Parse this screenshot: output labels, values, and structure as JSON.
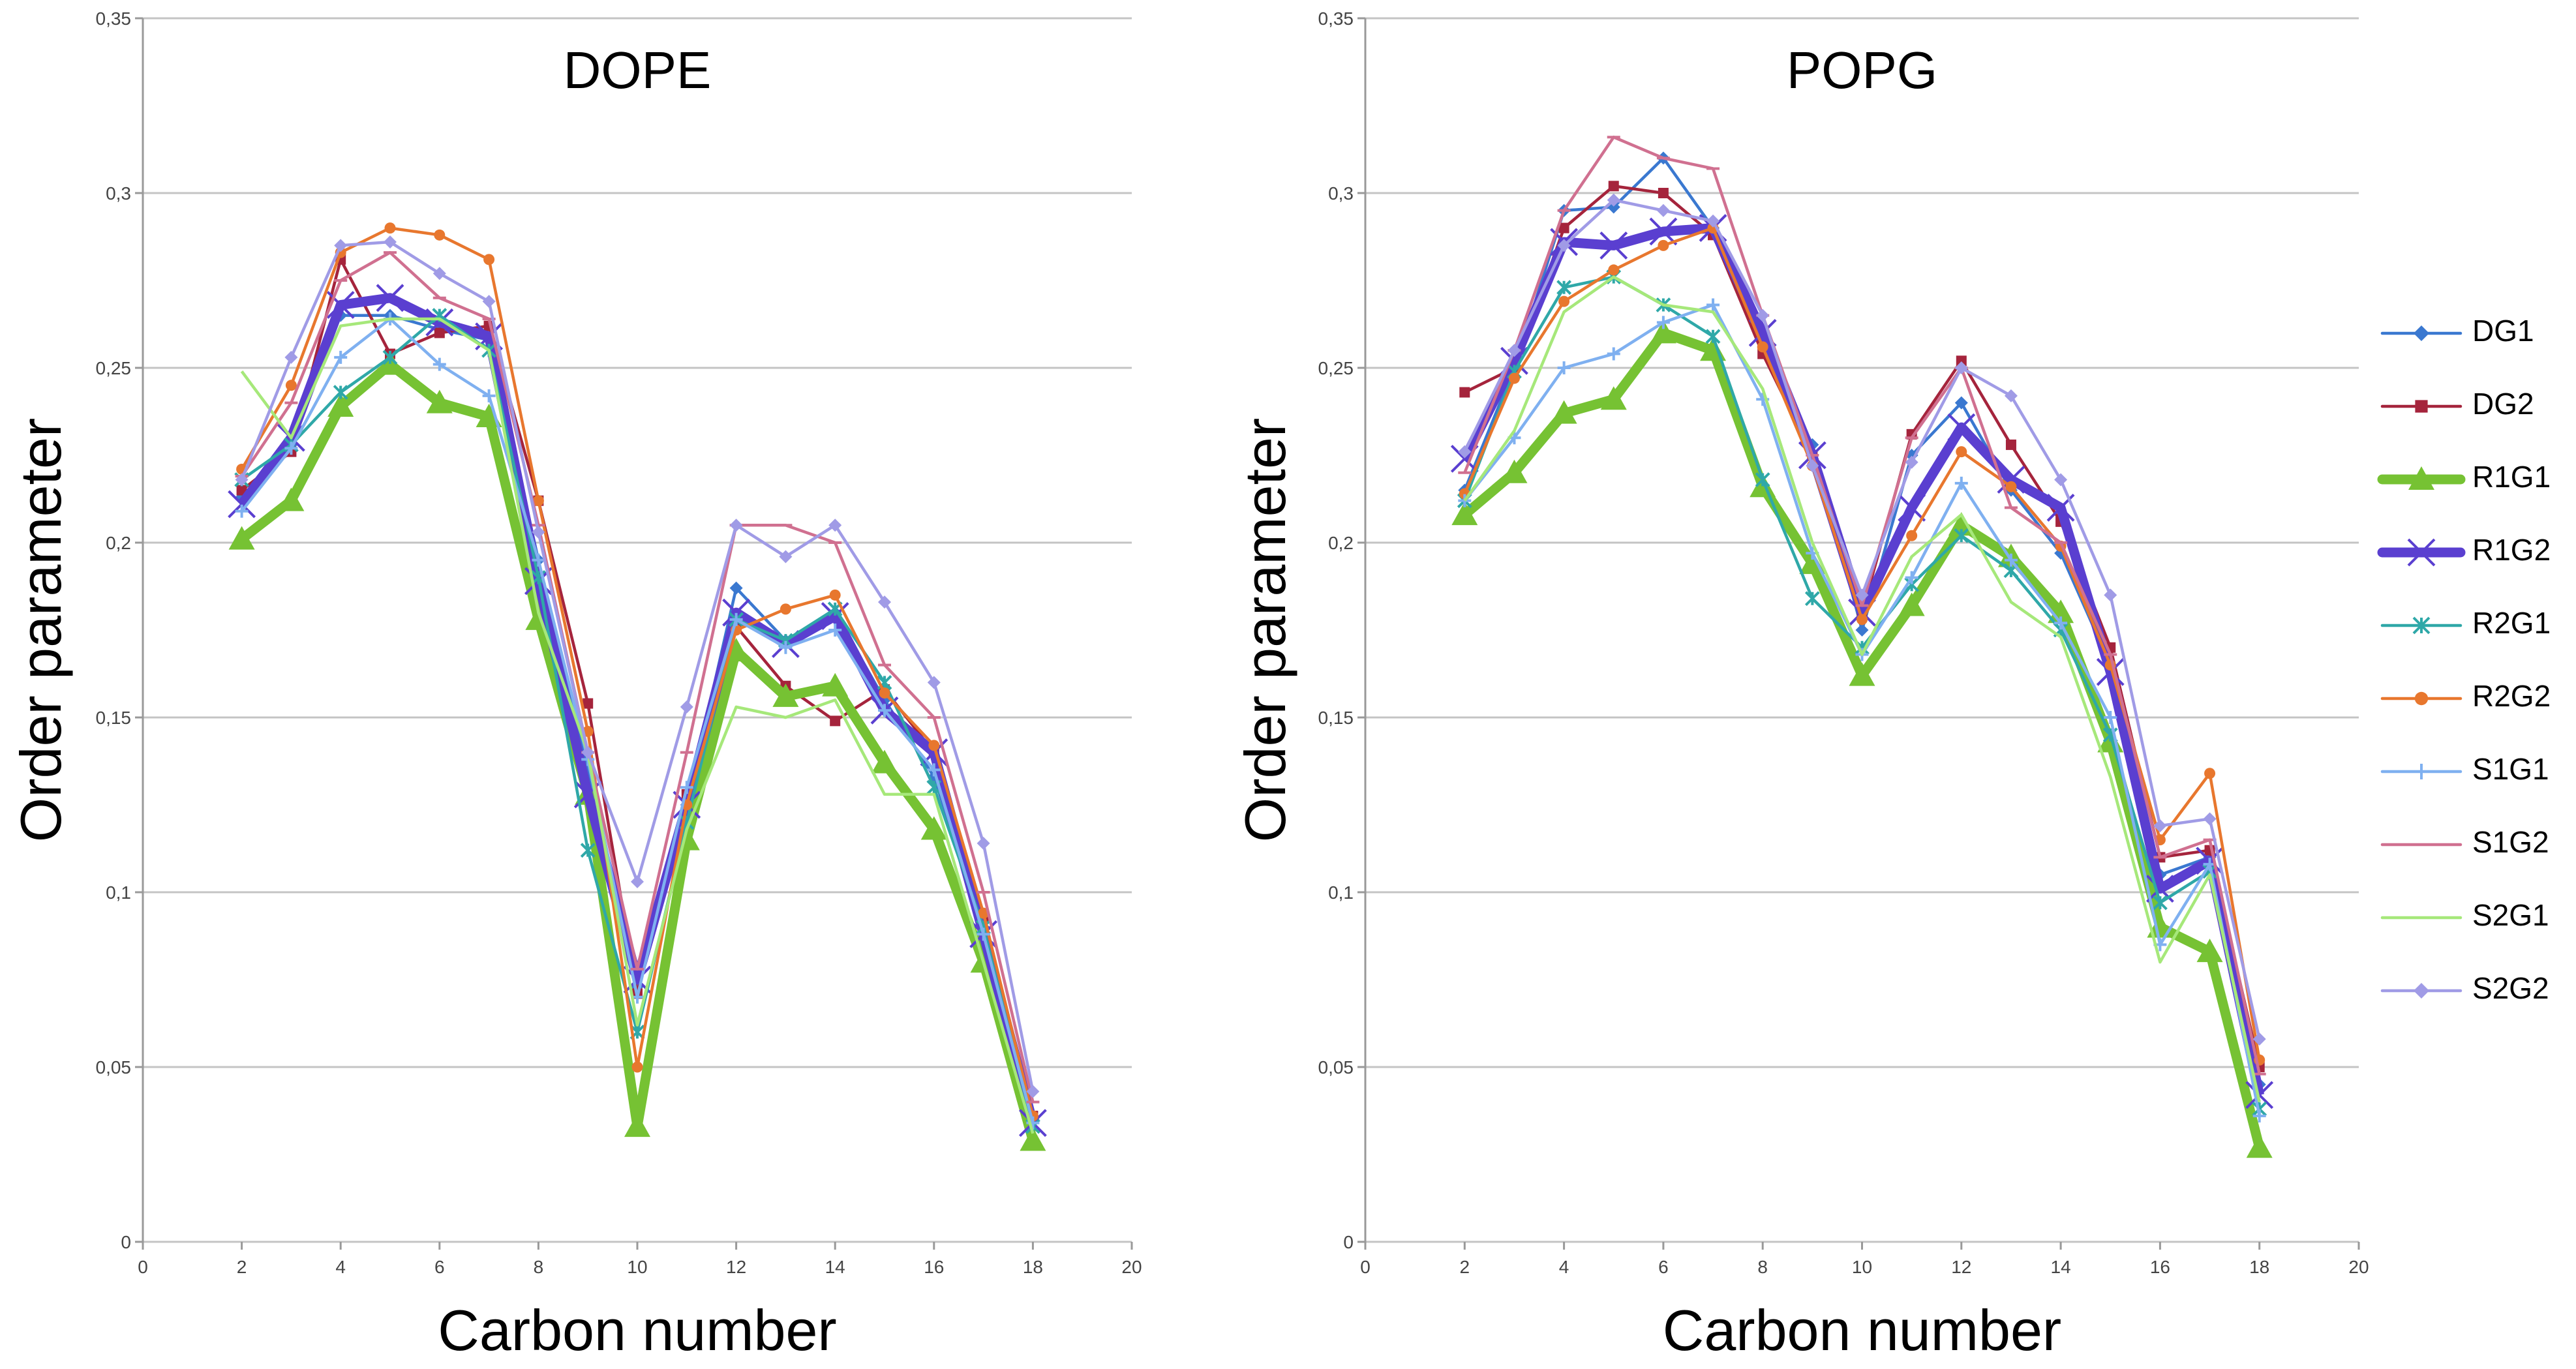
{
  "chart_data": [
    {
      "type": "line",
      "title": "DOPE",
      "x_label": "Carbon number",
      "y_label": "Order parameter",
      "x": [
        2,
        3,
        4,
        5,
        6,
        7,
        8,
        9,
        10,
        11,
        12,
        13,
        14,
        15,
        16,
        17,
        18
      ],
      "xlim": [
        0,
        20
      ],
      "xticks": [
        0,
        2,
        4,
        6,
        8,
        10,
        12,
        14,
        16,
        18,
        20
      ],
      "ylim": [
        0,
        0.35
      ],
      "yticks": [
        {
          "value": 0,
          "label": "0"
        },
        {
          "value": 0.05,
          "label": "0,05"
        },
        {
          "value": 0.1,
          "label": "0,1"
        },
        {
          "value": 0.15,
          "label": "0,15"
        },
        {
          "value": 0.2,
          "label": "0,2"
        },
        {
          "value": 0.25,
          "label": "0,25"
        },
        {
          "value": 0.3,
          "label": "0,3"
        },
        {
          "value": 0.35,
          "label": "0,35"
        }
      ],
      "grid": true,
      "series": [
        {
          "color": "#3a78d0",
          "marker": "diamond",
          "line": "thin",
          "values": [
            0.213,
            0.228,
            0.265,
            0.265,
            0.261,
            0.258,
            0.195,
            0.135,
            0.073,
            0.125,
            0.187,
            0.172,
            0.18,
            0.155,
            0.133,
            0.09,
            0.035
          ]
        },
        {
          "color": "#a5243c",
          "marker": "square",
          "line": "thin",
          "values": [
            0.215,
            0.226,
            0.281,
            0.254,
            0.26,
            0.262,
            0.212,
            0.154,
            0.071,
            0.128,
            0.176,
            0.159,
            0.149,
            0.158,
            0.14,
            0.093,
            0.036
          ]
        },
        {
          "color": "#76c233",
          "marker": "triangle",
          "line": "thick",
          "values": [
            0.201,
            0.212,
            0.239,
            0.251,
            0.24,
            0.236,
            0.178,
            0.128,
            0.033,
            0.115,
            0.169,
            0.156,
            0.159,
            0.137,
            0.118,
            0.08,
            0.029
          ]
        },
        {
          "color": "#5a3fd0",
          "marker": "x",
          "line": "thick",
          "values": [
            0.211,
            0.23,
            0.268,
            0.27,
            0.263,
            0.259,
            0.189,
            0.128,
            0.075,
            0.125,
            0.18,
            0.171,
            0.179,
            0.152,
            0.14,
            0.088,
            0.034
          ]
        },
        {
          "color": "#2fa8a8",
          "marker": "asterisk",
          "line": "thin",
          "values": [
            0.218,
            0.228,
            0.243,
            0.253,
            0.265,
            0.255,
            0.19,
            0.112,
            0.06,
            0.12,
            0.178,
            0.172,
            0.181,
            0.16,
            0.13,
            0.09,
            0.033
          ]
        },
        {
          "color": "#e8772e",
          "marker": "circle",
          "line": "thin",
          "values": [
            0.221,
            0.245,
            0.283,
            0.29,
            0.288,
            0.281,
            0.212,
            0.146,
            0.05,
            0.125,
            0.175,
            0.181,
            0.185,
            0.157,
            0.142,
            0.094,
            0.036
          ]
        },
        {
          "color": "#7fb0f0",
          "marker": "plus",
          "line": "thin",
          "values": [
            0.209,
            0.227,
            0.253,
            0.264,
            0.251,
            0.242,
            0.195,
            0.138,
            0.07,
            0.13,
            0.178,
            0.17,
            0.175,
            0.152,
            0.135,
            0.088,
            0.034
          ]
        },
        {
          "color": "#d07090",
          "marker": "dash",
          "line": "thin",
          "values": [
            0.219,
            0.24,
            0.275,
            0.283,
            0.27,
            0.264,
            0.205,
            0.14,
            0.078,
            0.14,
            0.205,
            0.205,
            0.2,
            0.165,
            0.15,
            0.1,
            0.04
          ]
        },
        {
          "color": "#a6e87a",
          "marker": "none",
          "line": "thin",
          "values": [
            0.249,
            0.23,
            0.262,
            0.264,
            0.264,
            0.255,
            0.18,
            0.14,
            0.062,
            0.118,
            0.153,
            0.15,
            0.155,
            0.128,
            0.128,
            0.08,
            0.031
          ]
        },
        {
          "color": "#a09be6",
          "marker": "diamond",
          "line": "thin",
          "values": [
            0.218,
            0.253,
            0.285,
            0.286,
            0.277,
            0.269,
            0.203,
            0.14,
            0.103,
            0.153,
            0.205,
            0.196,
            0.205,
            0.183,
            0.16,
            0.114,
            0.043
          ]
        }
      ]
    },
    {
      "type": "line",
      "title": "POPG",
      "x_label": "Carbon number",
      "y_label": "Order parameter",
      "x": [
        2,
        3,
        4,
        5,
        6,
        7,
        8,
        9,
        10,
        11,
        12,
        13,
        14,
        15,
        16,
        17,
        18
      ],
      "xlim": [
        0,
        20
      ],
      "xticks": [
        0,
        2,
        4,
        6,
        8,
        10,
        12,
        14,
        16,
        18,
        20
      ],
      "ylim": [
        0,
        0.35
      ],
      "yticks": [
        {
          "value": 0,
          "label": "0"
        },
        {
          "value": 0.05,
          "label": "0,05"
        },
        {
          "value": 0.1,
          "label": "0,1"
        },
        {
          "value": 0.15,
          "label": "0,15"
        },
        {
          "value": 0.2,
          "label": "0,2"
        },
        {
          "value": 0.25,
          "label": "0,25"
        },
        {
          "value": 0.3,
          "label": "0,3"
        },
        {
          "value": 0.35,
          "label": "0,35"
        }
      ],
      "grid": true,
      "legend": "right",
      "series": [
        {
          "name": "DG1",
          "color": "#3a78d0",
          "marker": "diamond",
          "line": "thin",
          "values": [
            0.215,
            0.25,
            0.295,
            0.296,
            0.31,
            0.29,
            0.258,
            0.228,
            0.175,
            0.225,
            0.24,
            0.215,
            0.197,
            0.165,
            0.105,
            0.11,
            0.045
          ]
        },
        {
          "name": "DG2",
          "color": "#a5243c",
          "marker": "square",
          "line": "thin",
          "values": [
            0.243,
            0.25,
            0.29,
            0.302,
            0.3,
            0.288,
            0.254,
            0.225,
            0.18,
            0.231,
            0.252,
            0.228,
            0.206,
            0.17,
            0.11,
            0.112,
            0.05
          ]
        },
        {
          "name": "R1G1",
          "color": "#76c233",
          "marker": "triangle",
          "line": "thick",
          "values": [
            0.208,
            0.22,
            0.237,
            0.241,
            0.26,
            0.255,
            0.216,
            0.194,
            0.162,
            0.182,
            0.205,
            0.196,
            0.18,
            0.143,
            0.09,
            0.083,
            0.027
          ]
        },
        {
          "name": "R1G2",
          "color": "#5a3fd0",
          "marker": "x",
          "line": "thick",
          "values": [
            0.224,
            0.252,
            0.286,
            0.285,
            0.289,
            0.29,
            0.26,
            0.225,
            0.18,
            0.21,
            0.233,
            0.218,
            0.21,
            0.163,
            0.101,
            0.109,
            0.042
          ]
        },
        {
          "name": "R2G1",
          "color": "#2fa8a8",
          "marker": "asterisk",
          "line": "thin",
          "values": [
            0.212,
            0.249,
            0.273,
            0.276,
            0.268,
            0.259,
            0.218,
            0.184,
            0.17,
            0.188,
            0.202,
            0.192,
            0.175,
            0.145,
            0.097,
            0.106,
            0.038
          ]
        },
        {
          "name": "R2G2",
          "color": "#e8772e",
          "marker": "circle",
          "line": "thin",
          "values": [
            0.214,
            0.247,
            0.269,
            0.278,
            0.285,
            0.29,
            0.256,
            0.222,
            0.178,
            0.202,
            0.226,
            0.216,
            0.199,
            0.165,
            0.115,
            0.134,
            0.052
          ]
        },
        {
          "name": "S1G1",
          "color": "#7fb0f0",
          "marker": "plus",
          "line": "thin",
          "values": [
            0.212,
            0.23,
            0.25,
            0.254,
            0.263,
            0.268,
            0.241,
            0.197,
            0.168,
            0.19,
            0.217,
            0.195,
            0.177,
            0.15,
            0.085,
            0.108,
            0.036
          ]
        },
        {
          "name": "S1G2",
          "color": "#d07090",
          "marker": "dash",
          "line": "thin",
          "values": [
            0.22,
            0.255,
            0.295,
            0.316,
            0.31,
            0.307,
            0.265,
            0.225,
            0.182,
            0.23,
            0.25,
            0.21,
            0.2,
            0.168,
            0.11,
            0.115,
            0.048
          ]
        },
        {
          "name": "S2G1",
          "color": "#a6e87a",
          "marker": "none",
          "line": "thin",
          "values": [
            0.212,
            0.232,
            0.266,
            0.276,
            0.268,
            0.266,
            0.244,
            0.2,
            0.168,
            0.196,
            0.208,
            0.183,
            0.173,
            0.133,
            0.08,
            0.105,
            0.04
          ]
        },
        {
          "name": "S2G2",
          "color": "#a09be6",
          "marker": "diamond",
          "line": "thin",
          "values": [
            0.226,
            0.255,
            0.285,
            0.298,
            0.295,
            0.292,
            0.265,
            0.222,
            0.185,
            0.223,
            0.25,
            0.242,
            0.218,
            0.185,
            0.119,
            0.121,
            0.058
          ]
        }
      ]
    }
  ]
}
